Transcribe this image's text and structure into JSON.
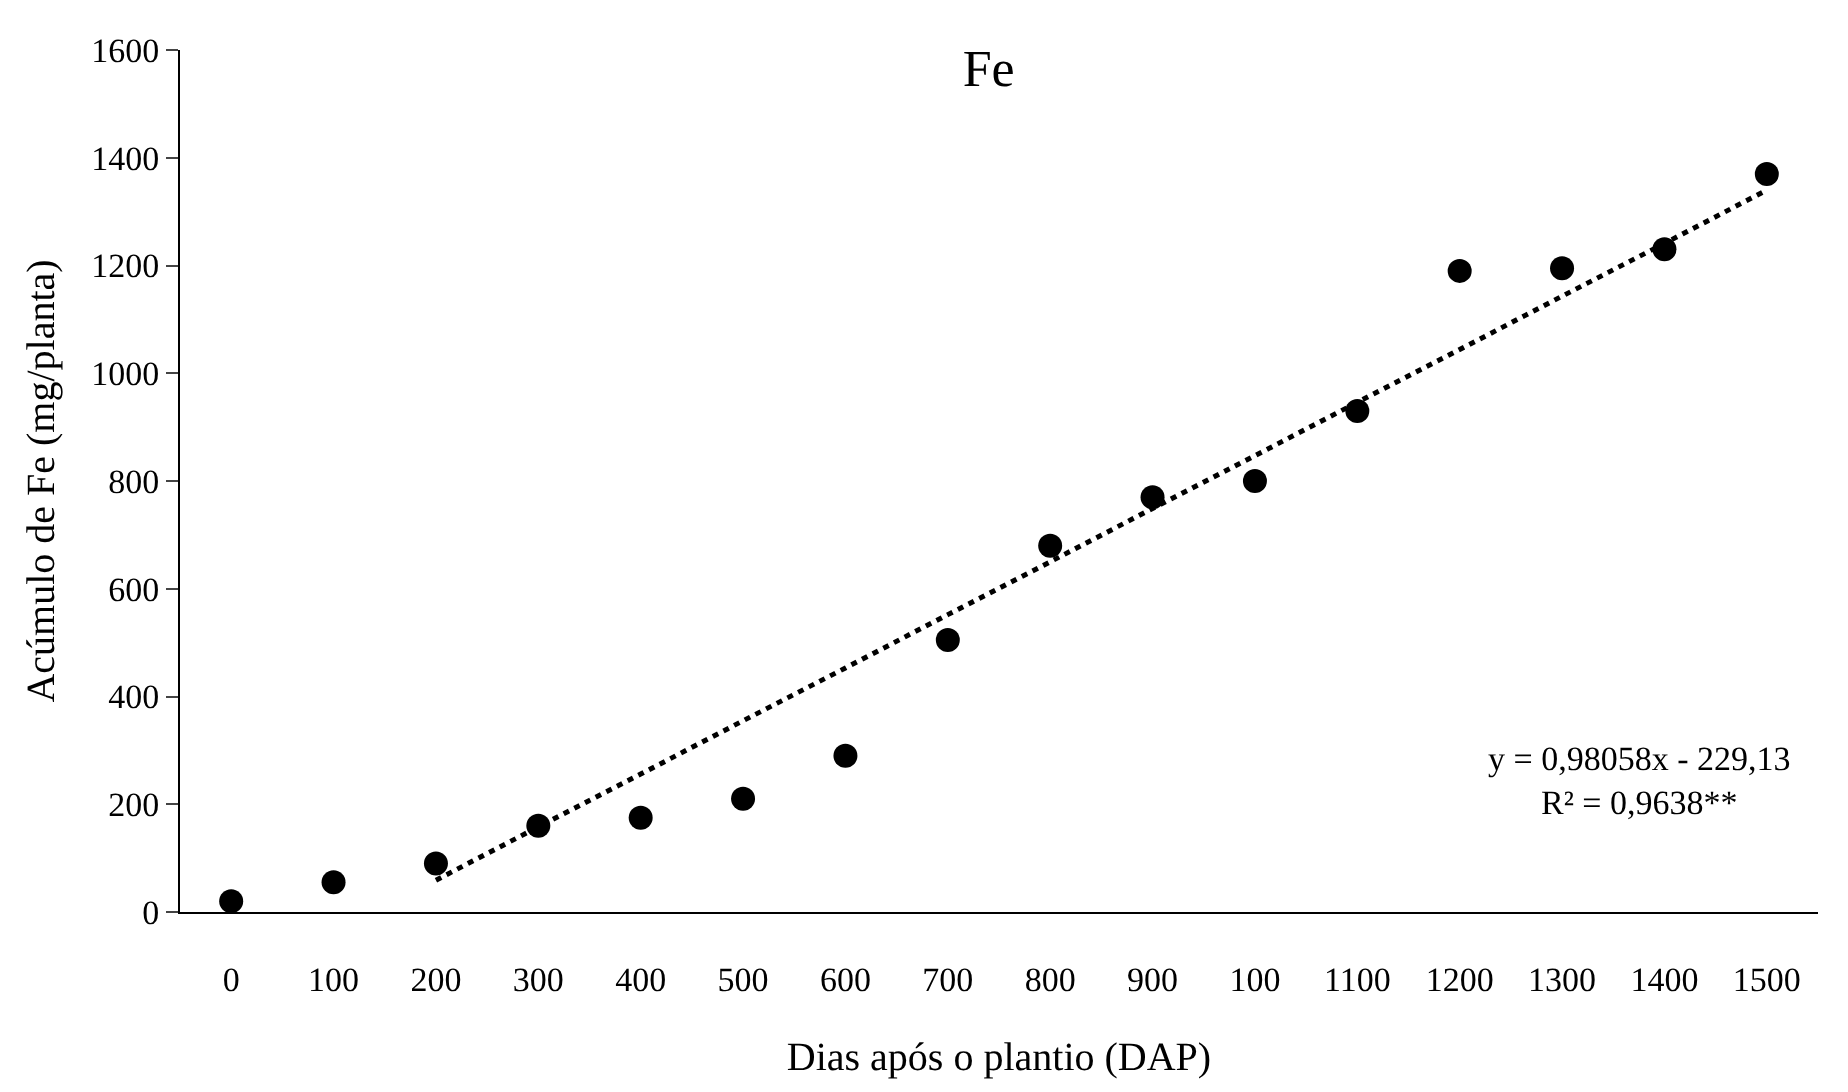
{
  "chart_data": {
    "type": "scatter",
    "title": "Fe",
    "xlabel": "Dias após o plantio (DAP)",
    "ylabel": "Acúmulo de Fe (mg/planta)",
    "categories": [
      "0",
      "100",
      "200",
      "300",
      "400",
      "500",
      "600",
      "700",
      "800",
      "900",
      "100",
      "1100",
      "1200",
      "1300",
      "1400",
      "1500"
    ],
    "series": [
      {
        "color": "#000000",
        "marker": "circle",
        "values": [
          20,
          55,
          90,
          160,
          175,
          210,
          290,
          505,
          680,
          770,
          800,
          930,
          1190,
          1195,
          1230,
          1370
        ]
      },
      {
        "type": "line",
        "color": "#000000",
        "marker": "none",
        "line_style": "dotted",
        "values": [
          null,
          null,
          59,
          158,
          256,
          355,
          453,
          552,
          650,
          749,
          847,
          946,
          1044,
          1143,
          1241,
          1340
        ]
      }
    ],
    "ylim": [
      0,
      1600
    ],
    "yticks": [
      0,
      200,
      400,
      600,
      800,
      1000,
      1200,
      1400,
      1600
    ],
    "annotations": [
      "y = 0,98058x - 229,13\nR² = 0,9638**"
    ]
  }
}
